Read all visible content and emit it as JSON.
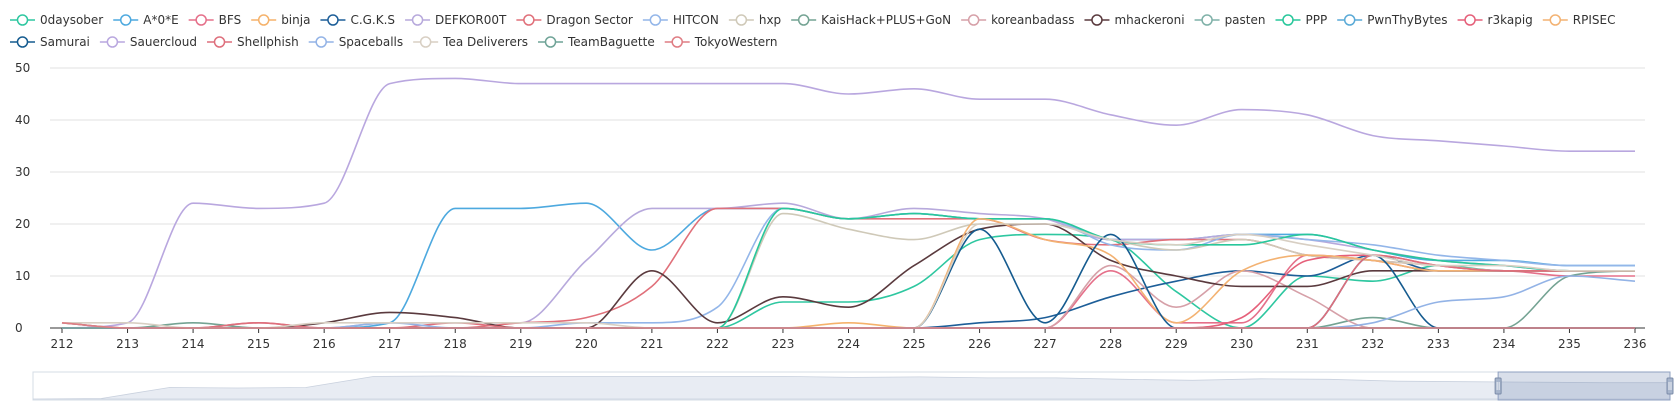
{
  "chart_data": {
    "type": "line",
    "title": "",
    "xlabel": "",
    "ylabel": "",
    "x": [
      212,
      213,
      214,
      215,
      216,
      217,
      218,
      219,
      220,
      221,
      222,
      223,
      224,
      225,
      226,
      227,
      228,
      229,
      230,
      231,
      232,
      233,
      234,
      235,
      236
    ],
    "xlim": [
      212,
      236
    ],
    "ylim": [
      0,
      50
    ],
    "y_ticks": [
      0,
      10,
      20,
      30,
      40,
      50
    ],
    "grid": "horizontal",
    "legend_position": "top",
    "smooth": true,
    "series": [
      {
        "name": "0daysober",
        "color": "#2ec7a0",
        "values": [
          0,
          0,
          0,
          0,
          0,
          0,
          0,
          0,
          0,
          0,
          0,
          5,
          5,
          8,
          17,
          18,
          17,
          7,
          0,
          10,
          9,
          12,
          11,
          11,
          11
        ]
      },
      {
        "name": "A*0*E",
        "color": "#4da9df",
        "values": [
          0,
          0,
          0,
          0,
          0,
          1,
          23,
          23,
          24,
          15,
          23,
          23,
          21,
          22,
          21,
          21,
          17,
          17,
          18,
          18,
          15,
          13,
          13,
          12,
          12
        ]
      },
      {
        "name": "BFS",
        "color": "#e5708a",
        "values": [
          1,
          0,
          0,
          1,
          0,
          0,
          0,
          0,
          0,
          0,
          0,
          0,
          0,
          0,
          0,
          0,
          11,
          1,
          1,
          14,
          13,
          11,
          11,
          10,
          10
        ]
      },
      {
        "name": "binja",
        "color": "#f5b26b",
        "values": [
          0,
          0,
          0,
          0,
          0,
          0,
          0,
          0,
          0,
          0,
          0,
          0,
          1,
          0,
          0,
          0,
          0,
          0,
          0,
          0,
          0,
          0,
          0,
          0,
          0
        ]
      },
      {
        "name": "C.G.K.S",
        "color": "#1d5e98",
        "values": [
          0,
          0,
          0,
          0,
          0,
          0,
          0,
          0,
          0,
          0,
          0,
          0,
          0,
          0,
          1,
          2,
          6,
          9,
          11,
          10,
          14,
          11,
          11,
          11,
          11
        ]
      },
      {
        "name": "DEFKOR00T",
        "color": "#b7a9dc",
        "values": [
          0,
          0,
          0,
          0,
          0,
          1,
          1,
          1,
          13,
          23,
          23,
          24,
          21,
          23,
          22,
          21,
          17,
          17,
          18,
          17,
          15,
          13,
          12,
          11,
          11
        ]
      },
      {
        "name": "Dragon Sector",
        "color": "#e0707a",
        "values": [
          0,
          0,
          0,
          0,
          0,
          0,
          0,
          1,
          2,
          8,
          23,
          23,
          21,
          21,
          21,
          17,
          16,
          17,
          17,
          14,
          13,
          12,
          11,
          11,
          11
        ]
      },
      {
        "name": "HITCON",
        "color": "#93b6e9",
        "values": [
          0,
          0,
          0,
          0,
          0,
          0,
          0,
          0,
          1,
          1,
          4,
          23,
          21,
          22,
          21,
          21,
          16,
          15,
          18,
          17,
          16,
          14,
          13,
          12,
          12
        ]
      },
      {
        "name": "hxp",
        "color": "#cfc9b8",
        "values": [
          0,
          0,
          0,
          0,
          0,
          0,
          0,
          0,
          0,
          0,
          0,
          22,
          19,
          17,
          20,
          20,
          17,
          15,
          17,
          14,
          13,
          12,
          11,
          11,
          11
        ]
      },
      {
        "name": "KaisHack+PLUS+GoN",
        "color": "#74a393",
        "values": [
          1,
          0,
          1,
          0,
          0,
          0,
          0,
          0,
          0,
          0,
          0,
          0,
          0,
          0,
          0,
          0,
          0,
          0,
          0,
          0,
          2,
          0,
          0,
          10,
          11
        ]
      },
      {
        "name": "koreanbadass",
        "color": "#d6a0a8",
        "values": [
          0,
          0,
          0,
          0,
          0,
          0,
          0,
          0,
          0,
          0,
          0,
          0,
          0,
          0,
          0,
          0,
          12,
          4,
          11,
          6,
          0,
          0,
          0,
          0,
          0
        ]
      },
      {
        "name": "mhackeroni",
        "color": "#5a3a3e",
        "values": [
          0,
          0,
          0,
          0,
          1,
          3,
          2,
          0,
          0,
          11,
          1,
          6,
          4,
          12,
          19,
          20,
          13,
          10,
          8,
          8,
          11,
          11,
          11,
          11,
          11
        ]
      },
      {
        "name": "pasten",
        "color": "#7fb1a8",
        "values": [
          0,
          0,
          0,
          0,
          0,
          0,
          0,
          0,
          0,
          0,
          0,
          0,
          0,
          0,
          0,
          0,
          0,
          0,
          0,
          0,
          0,
          0,
          0,
          0,
          0
        ]
      },
      {
        "name": "PPP",
        "color": "#28c79b",
        "values": [
          0,
          0,
          0,
          0,
          0,
          0,
          0,
          0,
          0,
          0,
          0,
          23,
          21,
          22,
          21,
          21,
          17,
          16,
          16,
          18,
          15,
          13,
          12,
          11,
          11
        ]
      },
      {
        "name": "PwnThyBytes",
        "color": "#5aaad7",
        "values": [
          0,
          0,
          0,
          0,
          0,
          0,
          0,
          0,
          0,
          0,
          0,
          0,
          0,
          0,
          0,
          0,
          0,
          0,
          0,
          0,
          0,
          0,
          0,
          0,
          0
        ]
      },
      {
        "name": "r3kapig",
        "color": "#e5607a",
        "values": [
          0,
          0,
          0,
          0,
          0,
          0,
          0,
          0,
          0,
          0,
          0,
          0,
          0,
          0,
          0,
          0,
          0,
          0,
          2,
          13,
          14,
          12,
          11,
          11,
          11
        ]
      },
      {
        "name": "RPISEC",
        "color": "#f3b272",
        "values": [
          0,
          0,
          0,
          0,
          0,
          0,
          0,
          0,
          0,
          0,
          0,
          0,
          0,
          0,
          21,
          17,
          14,
          1,
          11,
          14,
          13,
          11,
          11,
          11,
          11
        ]
      },
      {
        "name": "Samurai",
        "color": "#155b8f",
        "values": [
          0,
          0,
          0,
          0,
          0,
          0,
          0,
          0,
          0,
          0,
          0,
          0,
          0,
          0,
          19,
          1,
          18,
          0,
          0,
          0,
          14,
          0,
          0,
          0,
          0
        ]
      },
      {
        "name": "Sauercloud",
        "color": "#b9a7df",
        "values": [
          0,
          1,
          24,
          23,
          24,
          47,
          48,
          47,
          47,
          47,
          47,
          47,
          45,
          46,
          44,
          44,
          41,
          39,
          42,
          41,
          37,
          36,
          35,
          34,
          34
        ]
      },
      {
        "name": "Shellphish",
        "color": "#de6f7c",
        "values": [
          0,
          0,
          0,
          1,
          0,
          0,
          1,
          0,
          0,
          0,
          0,
          0,
          0,
          0,
          0,
          0,
          0,
          0,
          0,
          0,
          14,
          12,
          11,
          11,
          11
        ]
      },
      {
        "name": "Spaceballs",
        "color": "#93b3e6",
        "values": [
          0,
          0,
          0,
          0,
          0,
          1,
          0,
          0,
          0,
          0,
          0,
          0,
          0,
          0,
          0,
          0,
          0,
          0,
          0,
          0,
          1,
          5,
          6,
          10,
          9
        ]
      },
      {
        "name": "Tea Deliverers",
        "color": "#d8cfc3",
        "values": [
          1,
          1,
          0,
          0,
          1,
          1,
          1,
          1,
          1,
          0,
          0,
          0,
          0,
          0,
          20,
          20,
          17,
          16,
          18,
          16,
          14,
          12,
          12,
          11,
          11
        ]
      },
      {
        "name": "TeamBaguette",
        "color": "#6fa397",
        "values": [
          0,
          0,
          0,
          0,
          0,
          0,
          0,
          0,
          0,
          0,
          0,
          0,
          0,
          0,
          0,
          0,
          0,
          0,
          0,
          0,
          0,
          0,
          0,
          0,
          0
        ]
      },
      {
        "name": "TokyoWestern",
        "color": "#df7d84",
        "values": [
          1,
          0,
          0,
          0,
          0,
          0,
          0,
          0,
          0,
          0,
          0,
          0,
          0,
          0,
          0,
          0,
          0,
          0,
          0,
          0,
          0,
          0,
          0,
          0,
          0
        ]
      }
    ]
  },
  "data_zoom": {
    "start_fraction": 0.895,
    "end_fraction": 1.0
  }
}
